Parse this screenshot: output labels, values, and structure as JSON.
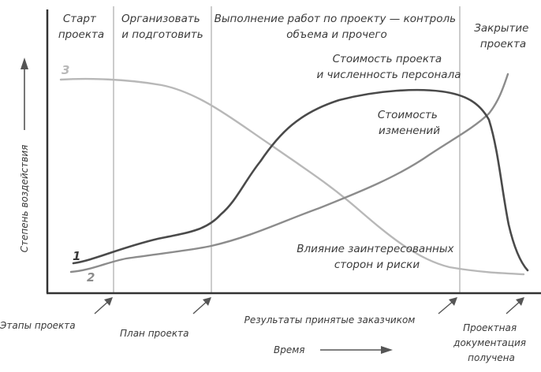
{
  "phases": {
    "start": [
      "Старт",
      "проекта"
    ],
    "organize": [
      "Организовать",
      "и подготовить"
    ],
    "execute": [
      "Выполнение работ по проекту — контроль",
      "объема и прочего"
    ],
    "close": [
      "Закрытие",
      "проекта"
    ]
  },
  "y_axis_label": "Степень воздействия",
  "x_axis_label": "Время",
  "curves": {
    "cost_staff": {
      "number": "1",
      "label": [
        "Стоимость проекта",
        "и численность персонала"
      ],
      "color": "#4a4a4a"
    },
    "change_cost": {
      "number": "2",
      "label": [
        "Стоимость",
        "изменений"
      ],
      "color": "#8c8c8c"
    },
    "risk": {
      "number": "3",
      "label": [
        "Влияние заинтересованных",
        "сторон и риски"
      ],
      "color": "#b8b8b8"
    }
  },
  "milestones": {
    "phases_label": "Этапы проекта",
    "plan": "План проекта",
    "accepted": "Результаты принятые заказчиком",
    "docs": [
      "Проектная",
      "документация",
      "получена"
    ]
  }
}
